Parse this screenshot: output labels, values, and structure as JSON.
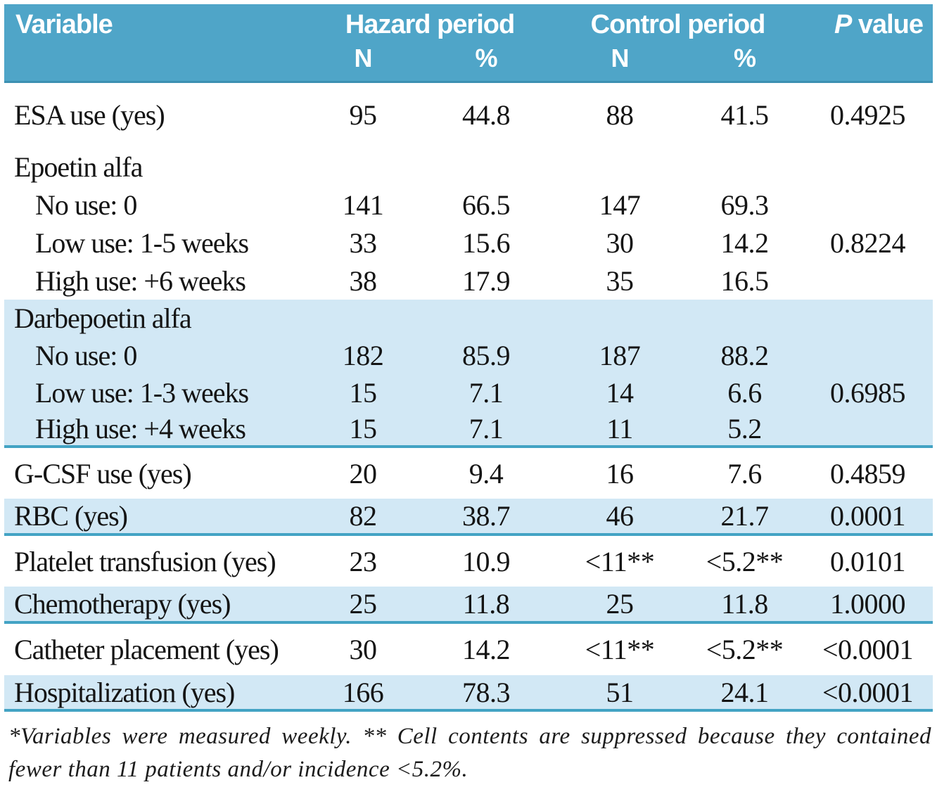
{
  "header": {
    "variable": "Variable",
    "hazard": "Hazard period",
    "control": "Control period",
    "pvalue_p": "P",
    "pvalue_rest": " value",
    "n": "N",
    "pct": "%"
  },
  "sections": [
    {
      "shaded": false,
      "rows": [
        {
          "label": "ESA use (yes)",
          "indent": false,
          "n1": "95",
          "p1": "44.8",
          "n2": "88",
          "p2": "41.5",
          "p": "0.4925"
        }
      ]
    },
    {
      "shaded": false,
      "rows": [
        {
          "label": "Epoetin alfa",
          "indent": false,
          "n1": "",
          "p1": "",
          "n2": "",
          "p2": "",
          "p": ""
        },
        {
          "label": "No use: 0",
          "indent": true,
          "n1": "141",
          "p1": "66.5",
          "n2": "147",
          "p2": "69.3",
          "p": ""
        },
        {
          "label": "Low use: 1-5 weeks",
          "indent": true,
          "n1": "33",
          "p1": "15.6",
          "n2": "30",
          "p2": "14.2",
          "p": "0.8224"
        },
        {
          "label": "High use: +6 weeks",
          "indent": true,
          "n1": "38",
          "p1": "17.9",
          "n2": "35",
          "p2": "16.5",
          "p": ""
        }
      ]
    },
    {
      "shaded": true,
      "rows": [
        {
          "label": "Darbepoetin alfa",
          "indent": false,
          "n1": "",
          "p1": "",
          "n2": "",
          "p2": "",
          "p": ""
        },
        {
          "label": "No use: 0",
          "indent": true,
          "n1": "182",
          "p1": "85.9",
          "n2": "187",
          "p2": "88.2",
          "p": ""
        },
        {
          "label": "Low use: 1-3 weeks",
          "indent": true,
          "n1": "15",
          "p1": "7.1",
          "n2": "14",
          "p2": "6.6",
          "p": "0.6985"
        },
        {
          "label": "High use: +4 weeks",
          "indent": true,
          "n1": "15",
          "p1": "7.1",
          "n2": "11",
          "p2": "5.2",
          "p": ""
        }
      ]
    },
    {
      "shaded": false,
      "rows": [
        {
          "label": "G-CSF use (yes)",
          "indent": false,
          "n1": "20",
          "p1": "9.4",
          "n2": "16",
          "p2": "7.6",
          "p": "0.4859"
        }
      ]
    },
    {
      "shaded": true,
      "rows": [
        {
          "label": "RBC (yes)",
          "indent": false,
          "n1": "82",
          "p1": "38.7",
          "n2": "46",
          "p2": "21.7",
          "p": "0.0001"
        }
      ]
    },
    {
      "shaded": false,
      "rows": [
        {
          "label": "Platelet transfusion (yes)",
          "indent": false,
          "n1": "23",
          "p1": "10.9",
          "n2": "<11**",
          "p2": "<5.2**",
          "p": "0.0101"
        }
      ]
    },
    {
      "shaded": true,
      "rows": [
        {
          "label": "Chemotherapy (yes)",
          "indent": false,
          "n1": "25",
          "p1": "11.8",
          "n2": "25",
          "p2": "11.8",
          "p": "1.0000"
        }
      ]
    },
    {
      "shaded": false,
      "rows": [
        {
          "label": "Catheter placement (yes)",
          "indent": false,
          "n1": "30",
          "p1": "14.2",
          "n2": "<11**",
          "p2": "<5.2**",
          "p": "<0.0001"
        }
      ]
    },
    {
      "shaded": true,
      "rows": [
        {
          "label": "Hospitalization (yes)",
          "indent": false,
          "n1": "166",
          "p1": "78.3",
          "n2": "51",
          "p2": "24.1",
          "p": "<0.0001"
        }
      ]
    }
  ],
  "footnote_lines": [
    "*Variables were measured weekly. ** Cell contents are suppressed because they contained",
    "fewer than 11 patients and/or incidence <5.2%."
  ],
  "colors": {
    "header_bg": "#4fa5c8",
    "shaded_bg": "#d2e8f5",
    "rule": "#43a3c4",
    "header_edge": "#3c90b2"
  }
}
